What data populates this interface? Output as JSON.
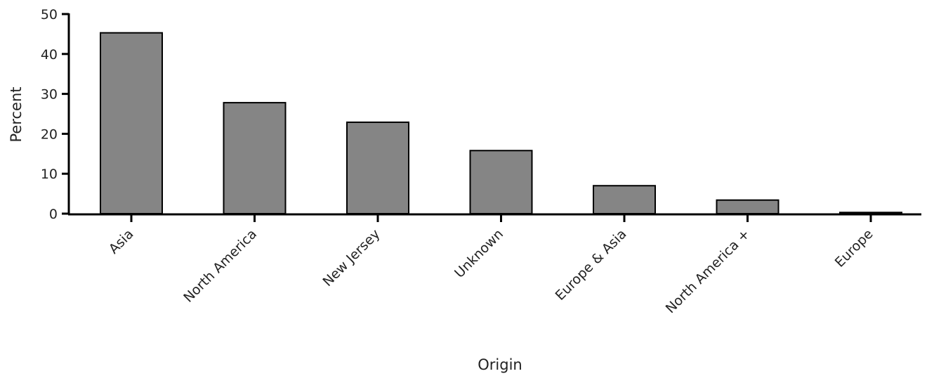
{
  "chart_data": {
    "type": "bar",
    "categories": [
      "Asia",
      "North America",
      "New Jersey",
      "Unknown",
      "Europe & Asia",
      "North America +",
      "Europe"
    ],
    "values": [
      45.3,
      27.8,
      22.9,
      15.8,
      7.0,
      3.4,
      0.3
    ],
    "title": "",
    "xlabel": "Origin",
    "ylabel": "Percent",
    "ylim": [
      0,
      50
    ],
    "yticks": [
      0,
      10,
      20,
      30,
      40,
      50
    ],
    "grid": false,
    "legend": "none",
    "bar_color": "#858585",
    "bar_edge_color": "#000000",
    "axis_color": "#000000"
  }
}
